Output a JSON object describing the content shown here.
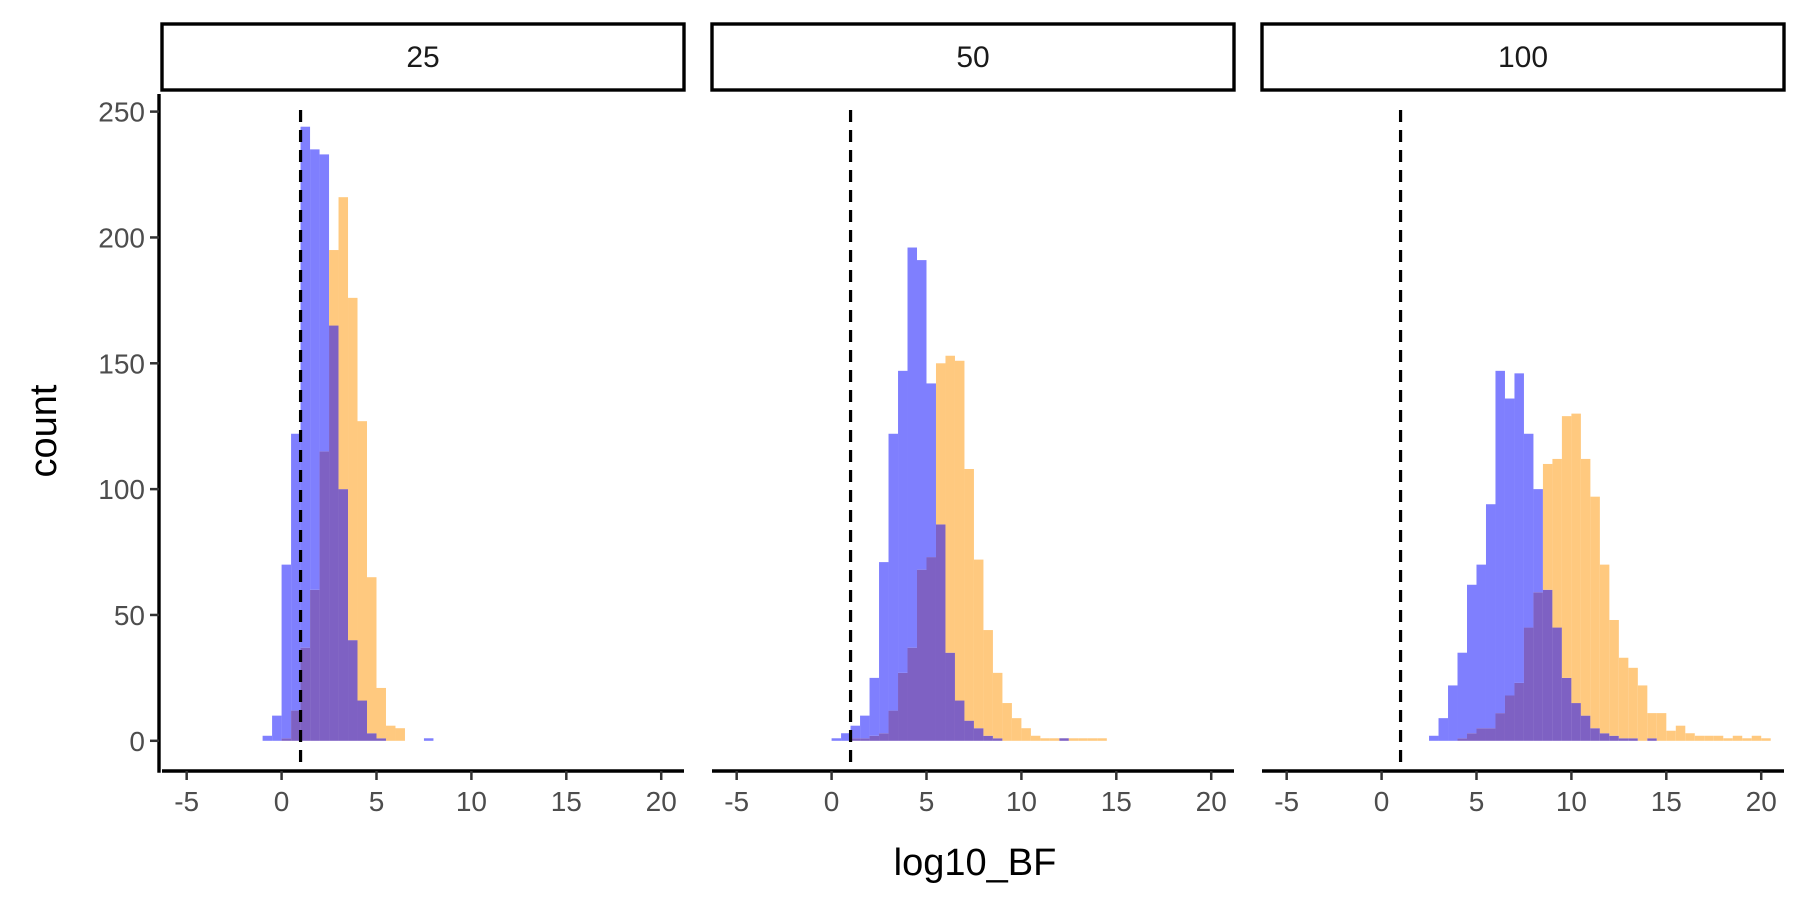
{
  "chart_data": {
    "type": "histogram",
    "title": "",
    "xlabel": "log10_BF",
    "ylabel": "count",
    "xlim": [
      -6.3,
      21.2
    ],
    "ylim": [
      -12,
      257
    ],
    "x_ticks": [
      -5,
      0,
      5,
      10,
      15,
      20
    ],
    "x_tick_labels": [
      "-5",
      "0",
      "5",
      "10",
      "15",
      "20"
    ],
    "y_ticks": [
      0,
      50,
      100,
      150,
      200,
      250
    ],
    "y_tick_labels": [
      "0",
      "50",
      "100",
      "150",
      "200",
      "250"
    ],
    "bin_width": 0.5,
    "reference_line": {
      "x": 1,
      "style": "dashed",
      "color": "#000000"
    },
    "series": [
      {
        "color": "#7f7ffe"
      },
      {
        "color": "#ffc97f"
      },
      {
        "color": "#7e61c3"
      }
    ],
    "facets": [
      {
        "label": "25",
        "bins": [
          {
            "x": -0.75,
            "blue": 2,
            "orange": 0
          },
          {
            "x": -0.25,
            "blue": 10,
            "orange": 0
          },
          {
            "x": 0.25,
            "blue": 70,
            "orange": 1
          },
          {
            "x": 0.75,
            "blue": 122,
            "orange": 12
          },
          {
            "x": 1.25,
            "blue": 244,
            "orange": 37
          },
          {
            "x": 1.75,
            "blue": 235,
            "orange": 60
          },
          {
            "x": 2.25,
            "blue": 233,
            "orange": 115
          },
          {
            "x": 2.75,
            "blue": 165,
            "orange": 195
          },
          {
            "x": 3.25,
            "blue": 100,
            "orange": 216
          },
          {
            "x": 3.75,
            "blue": 40,
            "orange": 176
          },
          {
            "x": 4.25,
            "blue": 16,
            "orange": 127
          },
          {
            "x": 4.75,
            "blue": 3,
            "orange": 65
          },
          {
            "x": 5.25,
            "blue": 1,
            "orange": 21
          },
          {
            "x": 5.75,
            "blue": 0,
            "orange": 6
          },
          {
            "x": 6.25,
            "blue": 0,
            "orange": 5
          },
          {
            "x": 6.75,
            "blue": 0,
            "orange": 0
          },
          {
            "x": 7.25,
            "blue": 0,
            "orange": 0
          },
          {
            "x": 7.75,
            "blue": 1,
            "orange": 0
          }
        ]
      },
      {
        "label": "50",
        "bins": [
          {
            "x": 0.25,
            "blue": 1,
            "orange": 0
          },
          {
            "x": 0.75,
            "blue": 3,
            "orange": 0
          },
          {
            "x": 1.25,
            "blue": 6,
            "orange": 1
          },
          {
            "x": 1.75,
            "blue": 10,
            "orange": 1
          },
          {
            "x": 2.25,
            "blue": 25,
            "orange": 2
          },
          {
            "x": 2.75,
            "blue": 71,
            "orange": 3
          },
          {
            "x": 3.25,
            "blue": 122,
            "orange": 12
          },
          {
            "x": 3.75,
            "blue": 147,
            "orange": 27
          },
          {
            "x": 4.25,
            "blue": 196,
            "orange": 37
          },
          {
            "x": 4.75,
            "blue": 191,
            "orange": 68
          },
          {
            "x": 5.25,
            "blue": 142,
            "orange": 73
          },
          {
            "x": 5.75,
            "blue": 86,
            "orange": 150
          },
          {
            "x": 6.25,
            "blue": 35,
            "orange": 153
          },
          {
            "x": 6.75,
            "blue": 16,
            "orange": 151
          },
          {
            "x": 7.25,
            "blue": 8,
            "orange": 108
          },
          {
            "x": 7.75,
            "blue": 5,
            "orange": 72
          },
          {
            "x": 8.25,
            "blue": 2,
            "orange": 44
          },
          {
            "x": 8.75,
            "blue": 1,
            "orange": 27
          },
          {
            "x": 9.25,
            "blue": 0,
            "orange": 15
          },
          {
            "x": 9.75,
            "blue": 0,
            "orange": 9
          },
          {
            "x": 10.25,
            "blue": 0,
            "orange": 5
          },
          {
            "x": 10.75,
            "blue": 0,
            "orange": 2
          },
          {
            "x": 11.25,
            "blue": 0,
            "orange": 1
          },
          {
            "x": 11.75,
            "blue": 0,
            "orange": 1
          },
          {
            "x": 12.25,
            "blue": 1,
            "orange": 1
          },
          {
            "x": 12.75,
            "blue": 0,
            "orange": 1
          },
          {
            "x": 13.25,
            "blue": 0,
            "orange": 1
          },
          {
            "x": 13.75,
            "blue": 0,
            "orange": 1
          },
          {
            "x": 14.25,
            "blue": 0,
            "orange": 1
          }
        ]
      },
      {
        "label": "100",
        "bins": [
          {
            "x": 2.75,
            "blue": 2,
            "orange": 0
          },
          {
            "x": 3.25,
            "blue": 9,
            "orange": 0
          },
          {
            "x": 3.75,
            "blue": 22,
            "orange": 0
          },
          {
            "x": 4.25,
            "blue": 35,
            "orange": 1
          },
          {
            "x": 4.75,
            "blue": 62,
            "orange": 3
          },
          {
            "x": 5.25,
            "blue": 70,
            "orange": 5
          },
          {
            "x": 5.75,
            "blue": 94,
            "orange": 5
          },
          {
            "x": 6.25,
            "blue": 147,
            "orange": 11
          },
          {
            "x": 6.75,
            "blue": 136,
            "orange": 18
          },
          {
            "x": 7.25,
            "blue": 146,
            "orange": 23
          },
          {
            "x": 7.75,
            "blue": 122,
            "orange": 45
          },
          {
            "x": 8.25,
            "blue": 100,
            "orange": 59
          },
          {
            "x": 8.75,
            "blue": 60,
            "orange": 110
          },
          {
            "x": 9.25,
            "blue": 45,
            "orange": 112
          },
          {
            "x": 9.75,
            "blue": 25,
            "orange": 129
          },
          {
            "x": 10.25,
            "blue": 15,
            "orange": 130
          },
          {
            "x": 10.75,
            "blue": 10,
            "orange": 112
          },
          {
            "x": 11.25,
            "blue": 5,
            "orange": 97
          },
          {
            "x": 11.75,
            "blue": 3,
            "orange": 70
          },
          {
            "x": 12.25,
            "blue": 2,
            "orange": 48
          },
          {
            "x": 12.75,
            "blue": 1,
            "orange": 33
          },
          {
            "x": 13.25,
            "blue": 1,
            "orange": 29
          },
          {
            "x": 13.75,
            "blue": 0,
            "orange": 22
          },
          {
            "x": 14.25,
            "blue": 1,
            "orange": 11
          },
          {
            "x": 14.75,
            "blue": 0,
            "orange": 11
          },
          {
            "x": 15.25,
            "blue": 0,
            "orange": 4
          },
          {
            "x": 15.75,
            "blue": 0,
            "orange": 6
          },
          {
            "x": 16.25,
            "blue": 0,
            "orange": 3
          },
          {
            "x": 16.75,
            "blue": 0,
            "orange": 2
          },
          {
            "x": 17.25,
            "blue": 0,
            "orange": 2
          },
          {
            "x": 17.75,
            "blue": 0,
            "orange": 2
          },
          {
            "x": 18.25,
            "blue": 0,
            "orange": 1
          },
          {
            "x": 18.75,
            "blue": 0,
            "orange": 2
          },
          {
            "x": 19.25,
            "blue": 0,
            "orange": 1
          },
          {
            "x": 19.75,
            "blue": 0,
            "orange": 2
          },
          {
            "x": 20.25,
            "blue": 0,
            "orange": 1
          }
        ]
      }
    ]
  }
}
